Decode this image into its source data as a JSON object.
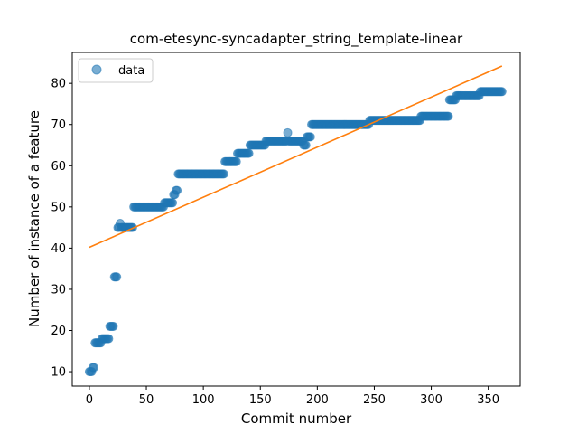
{
  "chart_data": {
    "type": "scatter",
    "title": "com-etesync-syncadapter_string_template-linear",
    "xlabel": "Commit number",
    "ylabel": "Number of instance of a feature",
    "xlim": [
      -15,
      378
    ],
    "ylim": [
      6.5,
      87.5
    ],
    "xticks": [
      0,
      50,
      100,
      150,
      200,
      250,
      300,
      350
    ],
    "yticks": [
      10,
      20,
      30,
      40,
      50,
      60,
      70,
      80
    ],
    "legend": {
      "placement": "upper-left",
      "entries": [
        "data"
      ]
    },
    "colors": {
      "data": "#1f77b4",
      "fit": "#ff7f0e"
    },
    "series": [
      {
        "name": "data",
        "kind": "scatter",
        "steps": [
          [
            0,
            2,
            10
          ],
          [
            3,
            4,
            11
          ],
          [
            5,
            10,
            17
          ],
          [
            11,
            17,
            18
          ],
          [
            18,
            21,
            21
          ],
          [
            22,
            24,
            33
          ],
          [
            25,
            26,
            45
          ],
          [
            27,
            27,
            46
          ],
          [
            28,
            38,
            45
          ],
          [
            39,
            65,
            50
          ],
          [
            66,
            73,
            51
          ],
          [
            74,
            75,
            53
          ],
          [
            76,
            77,
            54
          ],
          [
            78,
            118,
            58
          ],
          [
            119,
            129,
            61
          ],
          [
            130,
            140,
            63
          ],
          [
            141,
            154,
            65
          ],
          [
            155,
            173,
            66
          ],
          [
            174,
            174,
            68
          ],
          [
            175,
            187,
            66
          ],
          [
            188,
            190,
            65
          ],
          [
            191,
            194,
            67
          ],
          [
            195,
            245,
            70
          ],
          [
            246,
            290,
            71
          ],
          [
            291,
            315,
            72
          ],
          [
            316,
            321,
            76
          ],
          [
            322,
            342,
            77
          ],
          [
            343,
            362,
            78
          ]
        ]
      },
      {
        "kind": "line",
        "x": [
          0,
          362
        ],
        "y": [
          40.2,
          84.2
        ]
      }
    ]
  }
}
